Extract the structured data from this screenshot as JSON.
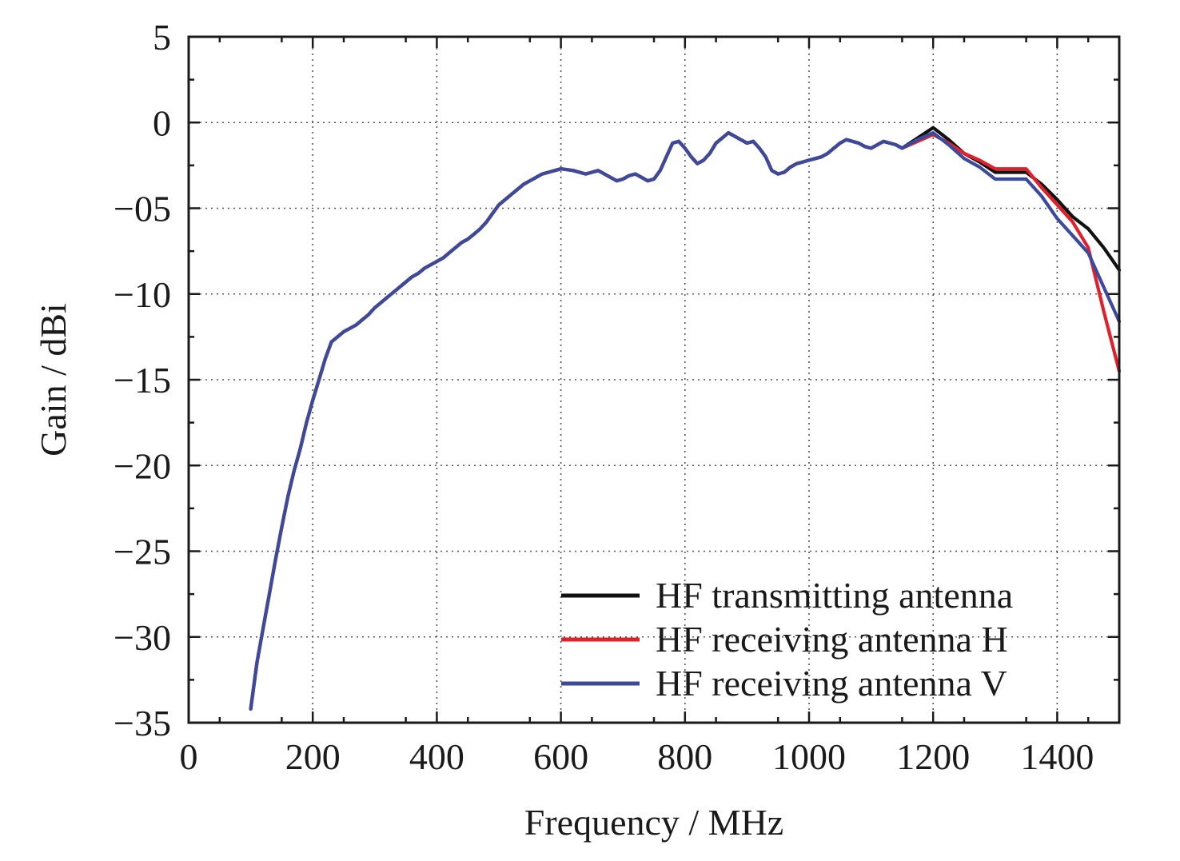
{
  "chart_data": {
    "type": "line",
    "title": "",
    "xlabel": "Frequency / MHz",
    "ylabel": "Gain / dBi",
    "xlim": [
      0,
      1500
    ],
    "ylim": [
      -35,
      5
    ],
    "x_ticks": [
      0,
      200,
      400,
      600,
      800,
      1000,
      1200,
      1400
    ],
    "y_ticks": [
      5,
      0,
      -5,
      -10,
      -15,
      -20,
      -25,
      -30,
      -35
    ],
    "x_tick_labels": [
      "0",
      "200",
      "400",
      "600",
      "800",
      "1000",
      "1200",
      "1400"
    ],
    "y_tick_labels": [
      "5",
      "0",
      "−05",
      "−10",
      "−15",
      "−20",
      "−25",
      "−30",
      "−35"
    ],
    "grid": true,
    "legend_position": "bottom-right",
    "shared_curve": {
      "x": [
        100,
        110,
        120,
        130,
        140,
        150,
        160,
        170,
        180,
        190,
        200,
        210,
        220,
        230,
        240,
        250,
        260,
        270,
        280,
        290,
        300,
        310,
        320,
        330,
        340,
        350,
        360,
        370,
        380,
        390,
        400,
        410,
        420,
        430,
        440,
        450,
        460,
        470,
        480,
        490,
        500,
        510,
        520,
        530,
        540,
        550,
        560,
        570,
        580,
        590,
        600,
        610,
        620,
        630,
        640,
        650,
        660,
        670,
        680,
        690,
        700,
        710,
        720,
        730,
        740,
        750,
        760,
        770,
        780,
        790,
        800,
        810,
        820,
        830,
        840,
        850,
        860,
        870,
        880,
        890,
        900,
        910,
        920,
        930,
        940,
        950,
        960,
        970,
        980,
        990,
        1000,
        1010,
        1020,
        1030,
        1040,
        1050,
        1060,
        1070,
        1080,
        1090,
        1100,
        1110,
        1120,
        1130,
        1140,
        1150
      ],
      "y": [
        -34.2,
        -31.5,
        -29.5,
        -27.5,
        -25.5,
        -23.6,
        -21.8,
        -20.3,
        -19.0,
        -17.5,
        -16.2,
        -15.0,
        -13.8,
        -12.8,
        -12.5,
        -12.2,
        -12.0,
        -11.8,
        -11.5,
        -11.2,
        -10.8,
        -10.5,
        -10.2,
        -9.9,
        -9.6,
        -9.3,
        -9.0,
        -8.8,
        -8.5,
        -8.3,
        -8.1,
        -7.9,
        -7.6,
        -7.3,
        -7.0,
        -6.8,
        -6.5,
        -6.2,
        -5.8,
        -5.3,
        -4.8,
        -4.5,
        -4.2,
        -3.9,
        -3.6,
        -3.4,
        -3.2,
        -3.0,
        -2.9,
        -2.8,
        -2.7,
        -2.75,
        -2.8,
        -2.9,
        -3.0,
        -2.9,
        -2.8,
        -3.0,
        -3.2,
        -3.4,
        -3.3,
        -3.1,
        -3.0,
        -3.2,
        -3.4,
        -3.3,
        -2.8,
        -2.0,
        -1.2,
        -1.1,
        -1.5,
        -2.0,
        -2.4,
        -2.2,
        -1.8,
        -1.2,
        -0.9,
        -0.6,
        -0.8,
        -1.0,
        -1.2,
        -1.1,
        -1.5,
        -2.0,
        -2.8,
        -3.0,
        -2.9,
        -2.6,
        -2.4,
        -2.3,
        -2.2,
        -2.1,
        -2.0,
        -1.8,
        -1.5,
        -1.2,
        -1.0,
        -1.1,
        -1.2,
        -1.4,
        -1.5,
        -1.3,
        -1.1,
        -1.2,
        -1.3,
        -1.5
      ]
    },
    "series": [
      {
        "name": "HF transmitting antenna",
        "color": "#111111",
        "tail_x": [
          1150,
          1175,
          1200,
          1225,
          1250,
          1275,
          1300,
          1325,
          1350,
          1375,
          1400,
          1425,
          1450,
          1475,
          1500
        ],
        "tail_y": [
          -1.5,
          -0.9,
          -0.3,
          -1.0,
          -1.8,
          -2.3,
          -2.9,
          -2.9,
          -2.9,
          -3.6,
          -4.5,
          -5.5,
          -6.2,
          -7.3,
          -8.6
        ]
      },
      {
        "name": "HF receiving antenna H",
        "color": "#e0212b",
        "tail_x": [
          1150,
          1175,
          1200,
          1225,
          1250,
          1275,
          1300,
          1325,
          1350,
          1375,
          1400,
          1425,
          1450,
          1475,
          1500
        ],
        "tail_y": [
          -1.5,
          -1.1,
          -0.7,
          -1.2,
          -1.8,
          -2.2,
          -2.7,
          -2.7,
          -2.7,
          -3.8,
          -4.8,
          -5.8,
          -7.3,
          -11.0,
          -14.5
        ]
      },
      {
        "name": "HF receiving antenna V",
        "color": "#3b4a9b",
        "tail_x": [
          1150,
          1175,
          1200,
          1225,
          1250,
          1275,
          1300,
          1325,
          1350,
          1375,
          1400,
          1425,
          1450,
          1475,
          1500
        ],
        "tail_y": [
          -1.5,
          -1.0,
          -0.6,
          -1.3,
          -2.1,
          -2.6,
          -3.3,
          -3.3,
          -3.3,
          -4.3,
          -5.6,
          -6.6,
          -7.6,
          -9.6,
          -11.6
        ]
      }
    ]
  }
}
